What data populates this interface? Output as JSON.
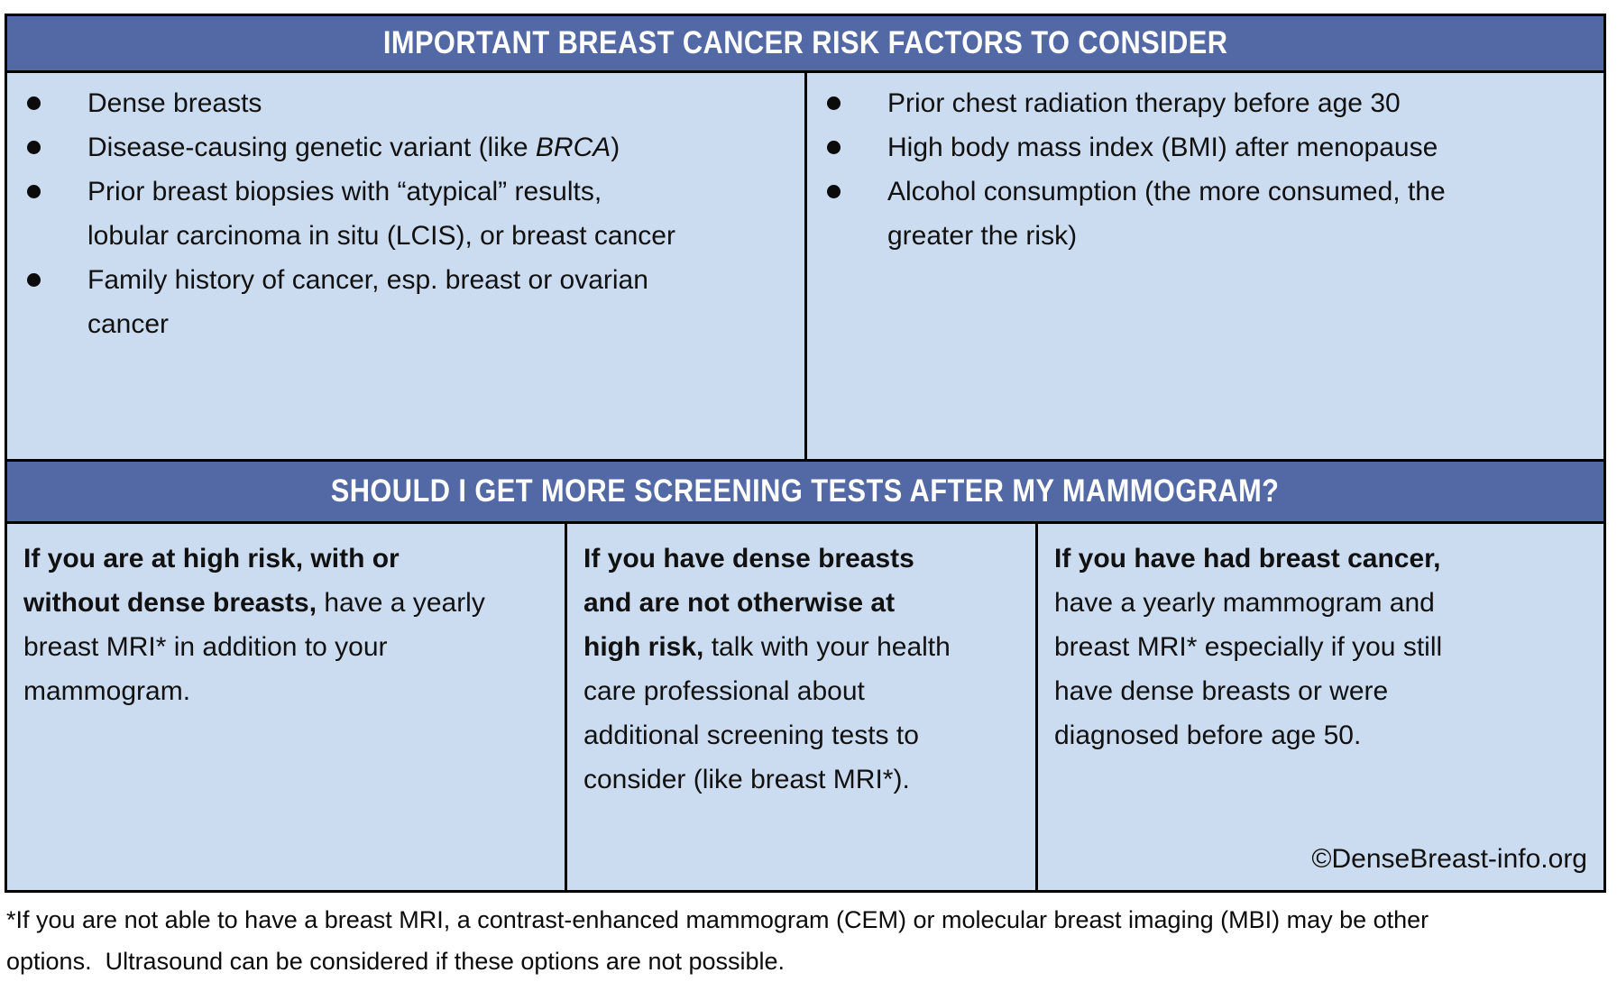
{
  "colors": {
    "header_bg": "#5269A6",
    "body_bg": "#CCDCF0",
    "border": "#000000",
    "header_text": "#FFFFFF",
    "body_text": "#111111"
  },
  "risk_table": {
    "title": "IMPORTANT BREAST CANCER RISK FACTORS TO CONSIDER",
    "left_items": [
      {
        "pre": "Dense breasts"
      },
      {
        "pre": "Disease-causing genetic variant (like ",
        "italic": "BRCA",
        "post": ")"
      },
      {
        "pre": "Prior breast biopsies with “atypical” results, lobular carcinoma in situ (LCIS), or breast cancer"
      },
      {
        "pre": "Family history of cancer, esp. breast or ovarian cancer"
      }
    ],
    "right_items": [
      {
        "pre": "Prior chest radiation therapy before age 30"
      },
      {
        "pre": "High body mass index (BMI) after menopause"
      },
      {
        "pre": "Alcohol consumption (the more consumed, the greater the risk)"
      }
    ]
  },
  "screening_table": {
    "title": "SHOULD I GET MORE SCREENING TESTS AFTER MY MAMMOGRAM?",
    "cells": [
      {
        "bold": "If you are at high risk, with or without dense breasts,",
        "rest": " have a yearly breast MRI* in addition to your mammogram."
      },
      {
        "bold": "If you have dense breasts and are not otherwise at high risk,",
        "rest": " talk with your health care professional about additional screening tests to consider (like breast MRI*)."
      },
      {
        "bold": "If you have had breast cancer,",
        "rest": " have a yearly mammogram and breast MRI* especially if you still have dense breasts or were diagnosed before age 50.",
        "credit": "©DenseBreast-info.org"
      }
    ]
  },
  "footnote": {
    "lines": [
      "*If you are not able to have a breast MRI, a contrast-enhanced mammogram (CEM) or molecular breast imaging (MBI) may be other",
      "options.  Ultrasound can be considered if these options are not possible."
    ]
  }
}
